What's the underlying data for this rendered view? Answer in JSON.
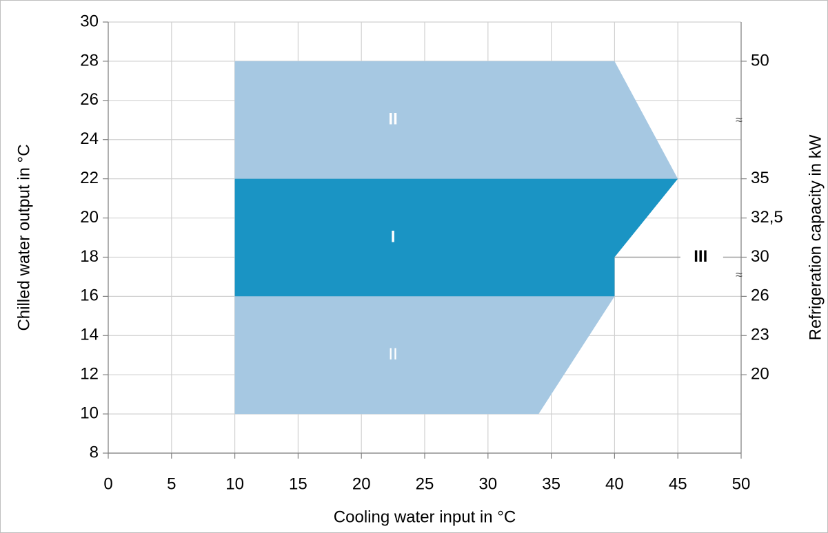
{
  "chart_data": {
    "type": "region",
    "x_label": "Cooling water input in °C",
    "y_label": "Chilled water output in °C",
    "xlim": [
      0,
      50
    ],
    "xticks": [
      0,
      5,
      10,
      15,
      20,
      25,
      30,
      35,
      40,
      45,
      50
    ],
    "ylim": [
      8,
      30
    ],
    "yticks": [
      8,
      10,
      12,
      14,
      16,
      18,
      20,
      22,
      24,
      26,
      28,
      30
    ],
    "grid": true,
    "right_axis": {
      "label": "Refrigeration capacity in kW",
      "break": "≈",
      "ticks": [
        {
          "y": 28,
          "value": 50
        },
        {
          "y": 22,
          "value": 35
        },
        {
          "y": 20,
          "value": 32.5,
          "label": "32,5"
        },
        {
          "y": 18,
          "value": 30
        },
        {
          "y": 16,
          "value": 26
        },
        {
          "y": 14,
          "value": 23
        },
        {
          "y": 12,
          "value": 20
        }
      ]
    },
    "regions": [
      {
        "name": "II",
        "color": "#a6c8e2",
        "label_bold": true,
        "x": [
          10,
          40,
          45,
          10
        ],
        "y": [
          28,
          28,
          22,
          22
        ]
      },
      {
        "name": "I",
        "color": "#1a94c4",
        "label_bold": true,
        "x": [
          10,
          45,
          40,
          40,
          10
        ],
        "y": [
          22,
          22,
          18,
          16,
          16
        ]
      },
      {
        "name": "II",
        "color": "#a6c8e2",
        "label_bold": false,
        "x": [
          10,
          40,
          34,
          10
        ],
        "y": [
          16,
          16,
          10,
          10
        ]
      }
    ],
    "annotations": [
      {
        "text": "III"
      }
    ]
  }
}
